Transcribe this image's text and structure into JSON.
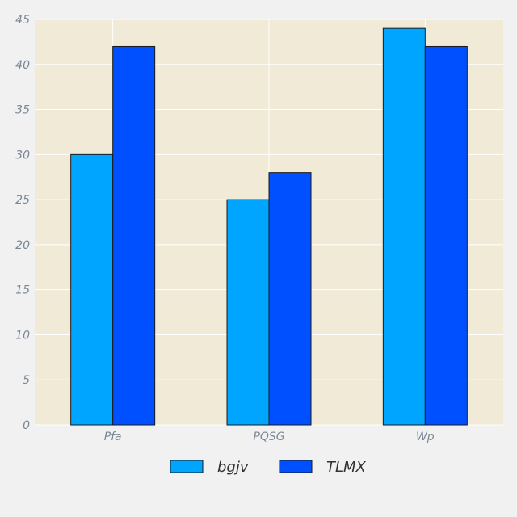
{
  "chart_data": {
    "type": "bar",
    "categories": [
      "Pfa",
      "PQSG",
      "Wp"
    ],
    "series": [
      {
        "name": "bgjv",
        "values": [
          30,
          25,
          44
        ],
        "color": "#00a5ff"
      },
      {
        "name": "TLMX",
        "values": [
          42,
          28,
          42
        ],
        "color": "#0050ff"
      }
    ],
    "ylim": [
      0,
      45
    ],
    "yticks": [
      0,
      5,
      10,
      15,
      20,
      25,
      30,
      35,
      40,
      45
    ],
    "grid": true,
    "legend_position": "bottom-center",
    "plot_background": "#f0ead6",
    "page_background": "#f1f1f1",
    "bar_edge_color": "#1a1a1a",
    "grid_color": "#ffffff",
    "tick_label_color": "#7a8795"
  }
}
